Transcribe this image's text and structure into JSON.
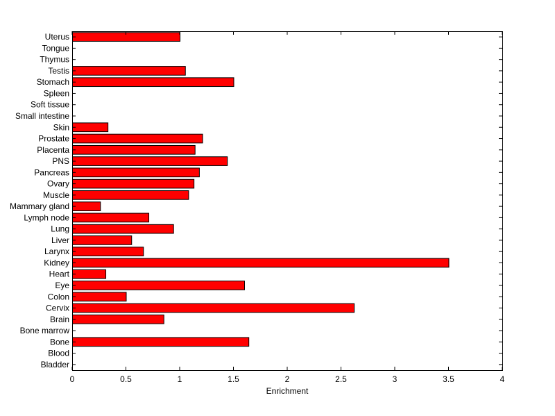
{
  "chart_data": {
    "type": "bar",
    "orientation": "horizontal",
    "categories": [
      "Bladder",
      "Blood",
      "Bone",
      "Bone marrow",
      "Brain",
      "Cervix",
      "Colon",
      "Eye",
      "Heart",
      "Kidney",
      "Larynx",
      "Liver",
      "Lung",
      "Lymph node",
      "Mammary gland",
      "Muscle",
      "Ovary",
      "Pancreas",
      "PNS",
      "Placenta",
      "Prostate",
      "Skin",
      "Small intestine",
      "Soft tissue",
      "Spleen",
      "Stomach",
      "Testis",
      "Thymus",
      "Tongue",
      "Uterus"
    ],
    "values": [
      0,
      0,
      1.64,
      0,
      0.85,
      2.62,
      0.5,
      1.6,
      0.31,
      3.5,
      0.66,
      0.55,
      0.94,
      0.71,
      0.26,
      1.08,
      1.13,
      1.18,
      1.44,
      1.14,
      1.21,
      0.33,
      0,
      0,
      0,
      1.5,
      1.05,
      0,
      0,
      1.0
    ],
    "xlabel": "Enrichment",
    "ylabel": "",
    "title": "",
    "xlim": [
      0,
      4
    ],
    "xticks": [
      "0",
      "0.5",
      "1",
      "1.5",
      "2",
      "2.5",
      "3",
      "3.5",
      "4"
    ],
    "bar_color": "#ff0000",
    "bar_edge_color": "#000000",
    "grid": false
  }
}
